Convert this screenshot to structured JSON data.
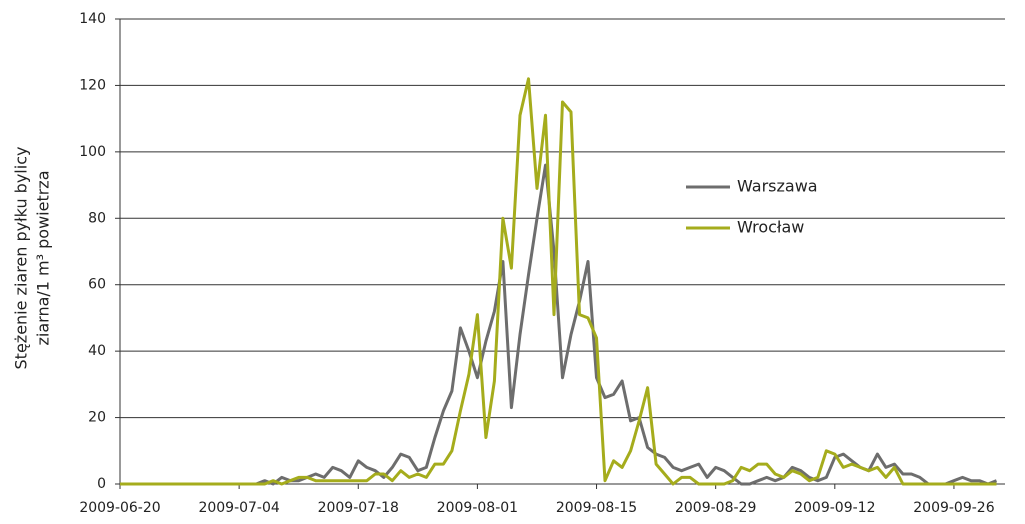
{
  "chart_data": {
    "type": "line",
    "y_label": [
      "Stężenie ziaren pyłku bylicy",
      "ziarna/1 m³ powietrza"
    ],
    "x": [
      "2009-06-20",
      "2009-06-21",
      "2009-06-22",
      "2009-06-23",
      "2009-06-24",
      "2009-06-25",
      "2009-06-26",
      "2009-06-27",
      "2009-06-28",
      "2009-06-29",
      "2009-06-30",
      "2009-07-01",
      "2009-07-02",
      "2009-07-03",
      "2009-07-04",
      "2009-07-05",
      "2009-07-06",
      "2009-07-07",
      "2009-07-08",
      "2009-07-09",
      "2009-07-10",
      "2009-07-11",
      "2009-07-12",
      "2009-07-13",
      "2009-07-14",
      "2009-07-15",
      "2009-07-16",
      "2009-07-17",
      "2009-07-18",
      "2009-07-19",
      "2009-07-20",
      "2009-07-21",
      "2009-07-22",
      "2009-07-23",
      "2009-07-24",
      "2009-07-25",
      "2009-07-26",
      "2009-07-27",
      "2009-07-28",
      "2009-07-29",
      "2009-07-30",
      "2009-07-31",
      "2009-08-01",
      "2009-08-02",
      "2009-08-03",
      "2009-08-04",
      "2009-08-05",
      "2009-08-06",
      "2009-08-07",
      "2009-08-08",
      "2009-08-09",
      "2009-08-10",
      "2009-08-11",
      "2009-08-12",
      "2009-08-13",
      "2009-08-14",
      "2009-08-15",
      "2009-08-16",
      "2009-08-17",
      "2009-08-18",
      "2009-08-19",
      "2009-08-20",
      "2009-08-21",
      "2009-08-22",
      "2009-08-23",
      "2009-08-24",
      "2009-08-25",
      "2009-08-26",
      "2009-08-27",
      "2009-08-28",
      "2009-08-29",
      "2009-08-30",
      "2009-08-31",
      "2009-09-01",
      "2009-09-02",
      "2009-09-03",
      "2009-09-04",
      "2009-09-05",
      "2009-09-06",
      "2009-09-07",
      "2009-09-08",
      "2009-09-09",
      "2009-09-10",
      "2009-09-11",
      "2009-09-12",
      "2009-09-13",
      "2009-09-14",
      "2009-09-15",
      "2009-09-16",
      "2009-09-17",
      "2009-09-18",
      "2009-09-19",
      "2009-09-20",
      "2009-09-21",
      "2009-09-22",
      "2009-09-23",
      "2009-09-24",
      "2009-09-25",
      "2009-09-26",
      "2009-09-27",
      "2009-09-28",
      "2009-09-29",
      "2009-09-30",
      "2009-10-01"
    ],
    "series": [
      {
        "name": "Warszawa",
        "color": "#6d6d6d",
        "values": [
          0,
          0,
          0,
          0,
          0,
          0,
          0,
          0,
          0,
          0,
          0,
          0,
          0,
          0,
          0,
          0,
          0,
          1,
          0,
          2,
          1,
          1,
          2,
          3,
          2,
          5,
          4,
          2,
          7,
          5,
          4,
          2,
          5,
          9,
          8,
          4,
          5,
          14,
          22,
          28,
          47,
          40,
          32,
          43,
          52,
          67,
          23,
          45,
          63,
          80,
          96,
          70,
          32,
          45,
          55,
          67,
          32,
          26,
          27,
          31,
          19,
          20,
          11,
          9,
          8,
          5,
          4,
          5,
          6,
          2,
          5,
          4,
          2,
          0,
          0,
          1,
          2,
          1,
          2,
          5,
          4,
          2,
          1,
          2,
          8,
          9,
          7,
          5,
          4,
          9,
          5,
          6,
          3,
          3,
          2,
          0,
          0,
          0,
          1,
          2,
          1,
          1,
          0,
          1
        ]
      },
      {
        "name": "Wrocław",
        "color": "#a5ac1c",
        "values": [
          0,
          0,
          0,
          0,
          0,
          0,
          0,
          0,
          0,
          0,
          0,
          0,
          0,
          0,
          0,
          0,
          0,
          0,
          1,
          0,
          1,
          2,
          2,
          1,
          1,
          1,
          1,
          1,
          1,
          1,
          3,
          3,
          1,
          4,
          2,
          3,
          2,
          6,
          6,
          10,
          22,
          33,
          51,
          14,
          31,
          80,
          65,
          111,
          122,
          89,
          111,
          51,
          115,
          112,
          51,
          50,
          44,
          1,
          7,
          5,
          10,
          19,
          29,
          6,
          3,
          0,
          2,
          2,
          0,
          0,
          0,
          0,
          1,
          5,
          4,
          6,
          6,
          3,
          2,
          4,
          3,
          1,
          2,
          10,
          9,
          5,
          6,
          5,
          4,
          5,
          2,
          5,
          0,
          0,
          0,
          0,
          0,
          0,
          0,
          0,
          0,
          0,
          0,
          0
        ]
      }
    ],
    "xlim": [
      "2009-06-20",
      "2009-10-02"
    ],
    "xticks": [
      "2009-06-20",
      "2009-07-04",
      "2009-07-18",
      "2009-08-01",
      "2009-08-15",
      "2009-08-29",
      "2009-09-12",
      "2009-09-26"
    ],
    "ylim": [
      0,
      140
    ],
    "yticks": [
      0,
      20,
      40,
      60,
      80,
      100,
      120,
      140
    ],
    "grid": true
  }
}
